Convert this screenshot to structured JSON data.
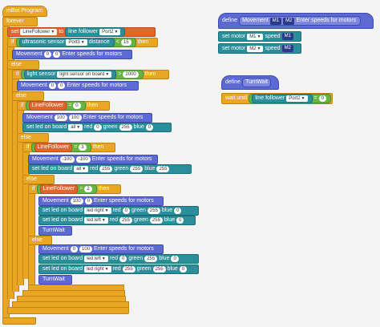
{
  "colors": {
    "control": "#e8a623",
    "data": "#e1662b",
    "more_blocks": "#5c6ad1",
    "mbot": "#2a8f9a",
    "operators": "#66b541",
    "background": "#f4f4f4"
  },
  "main": {
    "hat": "mBot Program",
    "forever": "forever",
    "set": "set",
    "set_var": "LineFollower",
    "to": "to",
    "lf_label": "line follower",
    "port2": "Port2",
    "if1": "if",
    "us_label": "ultrasonic sensor",
    "port3": "Port3",
    "distance": "distance",
    "lt": "<",
    "v15": "15",
    "then": "then",
    "mv": "Movement",
    "zero": "0",
    "enter": "Enter speeds for motors",
    "else": "else",
    "if2": "if",
    "ls_label": "light sensor",
    "ls_onboard": "light sensor on board",
    "gt": ">",
    "v2000": "2000",
    "if3": "if",
    "eq": "=",
    "v100": "100",
    "setled": "set led on board",
    "all": "all",
    "red": "red",
    "green": "green",
    "blue": "blue",
    "v255": "255",
    "v3": "3",
    "vm100": "-100",
    "v2": "2",
    "led_right": "led right",
    "led_left": "led left",
    "turnwait": "TurnWait"
  },
  "def1": {
    "define": "define",
    "movement": "Movement",
    "m1": "M1",
    "m2": "M2",
    "enter": "Enter speeds for motors",
    "setmotor": "set motor",
    "m1p": "M1",
    "m2p": "M2",
    "speed": "speed"
  },
  "def2": {
    "define": "define",
    "name": "TurnWait",
    "waituntil": "wait until",
    "lf": "line follower",
    "port2": "Port2",
    "eq": "=",
    "zero": "0"
  }
}
